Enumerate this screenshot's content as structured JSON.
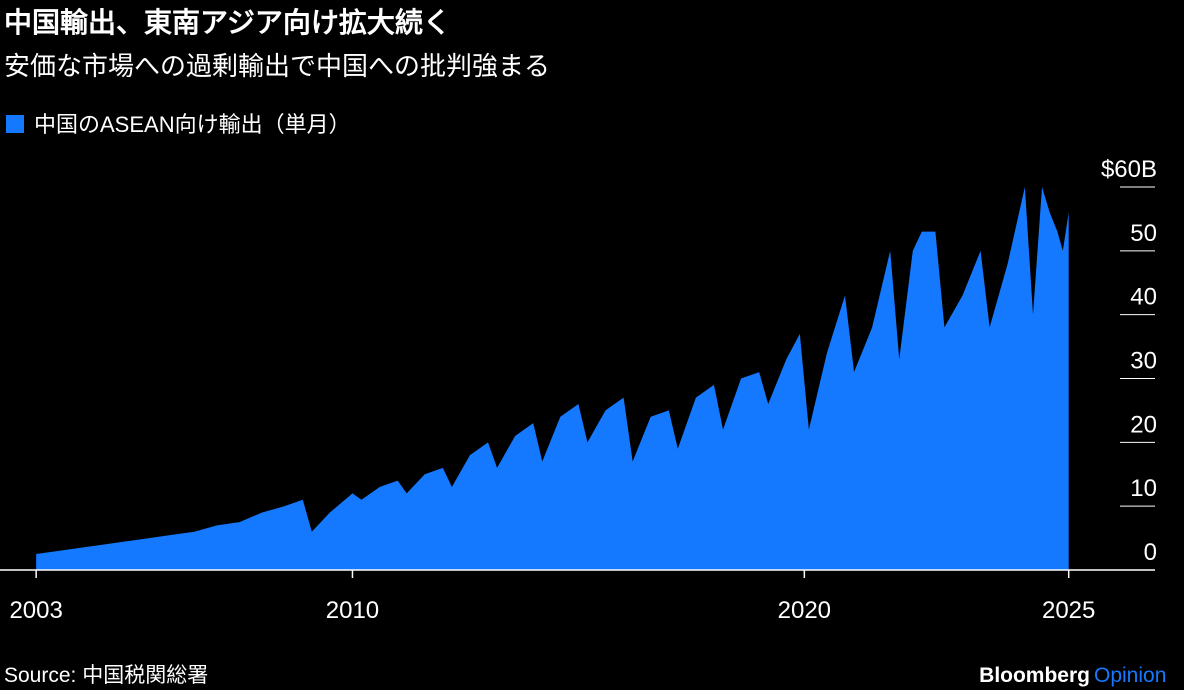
{
  "chart_data": {
    "type": "area",
    "title": "中国輸出、東南アジア向け拡大続く",
    "subtitle": "安価な市場への過剰輸出で中国への批判強まる",
    "x": [
      2003.0,
      2003.5,
      2004.0,
      2004.5,
      2005.0,
      2005.5,
      2006.0,
      2006.5,
      2007.0,
      2007.5,
      2008.0,
      2008.5,
      2008.9,
      2009.1,
      2009.5,
      2010.0,
      2010.2,
      2010.6,
      2011.0,
      2011.2,
      2011.6,
      2012.0,
      2012.2,
      2012.6,
      2013.0,
      2013.2,
      2013.6,
      2014.0,
      2014.2,
      2014.6,
      2015.0,
      2015.2,
      2015.6,
      2016.0,
      2016.2,
      2016.6,
      2017.0,
      2017.2,
      2017.6,
      2018.0,
      2018.2,
      2018.6,
      2019.0,
      2019.2,
      2019.6,
      2019.9,
      2020.1,
      2020.5,
      2020.9,
      2021.1,
      2021.5,
      2021.9,
      2022.1,
      2022.4,
      2022.6,
      2022.9,
      2023.1,
      2023.5,
      2023.9,
      2024.1,
      2024.5,
      2024.88,
      2025.06,
      2025.26,
      2025.43,
      2025.6,
      2025.72,
      2025.85
    ],
    "series": [
      {
        "name": "中国のASEAN向け輸出（単月）",
        "color": "#1479ff",
        "values": [
          2.5,
          3,
          3.5,
          4,
          4.5,
          5,
          5.5,
          6,
          7,
          7.5,
          9,
          10,
          11,
          6,
          9,
          12,
          11,
          13,
          14,
          12,
          15,
          16,
          13,
          18,
          20,
          16,
          21,
          23,
          17,
          24,
          26,
          20,
          25,
          27,
          17,
          24,
          25,
          19,
          27,
          29,
          22,
          30,
          31,
          26,
          33,
          37,
          22,
          34,
          43,
          31,
          38,
          50,
          33,
          50,
          53,
          53,
          38,
          43,
          50,
          38,
          48,
          60,
          40,
          60,
          56,
          53,
          50,
          56
        ]
      }
    ],
    "xlim": [
      2002.2,
      2027.76
    ],
    "xticks": [
      2003,
      2010,
      2020,
      {
        "value": 2025.85,
        "label": "2025"
      }
    ],
    "ylim": [
      0,
      60
    ],
    "yticks": [
      0,
      10,
      20,
      30,
      40,
      50,
      {
        "value": 60,
        "label": "$60B"
      }
    ],
    "source": "Source: 中国税関総署",
    "brand": "Bloomberg",
    "brand_sub": "Opinion"
  }
}
